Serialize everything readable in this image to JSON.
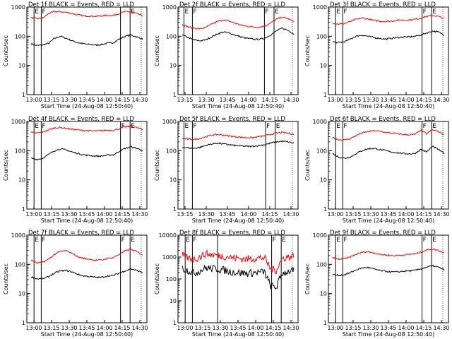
{
  "figure": {
    "background": "#ffffff",
    "series_colors": {
      "events": "#000000",
      "lld": "#ff0000"
    },
    "xlabel": "Start Time (24-Aug-08 12:50:40)",
    "ylabel": "Counts/sec"
  },
  "chart_data": [
    {
      "type": "line",
      "title": "Det 1f BLACK = Events, RED = LLD",
      "scale": "log",
      "ylim": [
        1,
        1000
      ],
      "yticks": [
        "1",
        "10",
        "100",
        "1000"
      ],
      "xticks": [
        "13:00",
        "13:15",
        "13:30",
        "13:45",
        "14:00",
        "14:15",
        "14:30"
      ],
      "markers": [
        {
          "x": 0.06,
          "label": "E"
        },
        {
          "x": 0.12,
          "label": "F"
        },
        {
          "x": 0.78,
          "label": ""
        },
        {
          "x": 0.86,
          "label": "E"
        }
      ],
      "series": [
        {
          "key": "events",
          "values": [
            55,
            48,
            50,
            58,
            85,
            100,
            85,
            70,
            60,
            55,
            52,
            50,
            52,
            58,
            60,
            80,
            100,
            110,
            95,
            80
          ]
        },
        {
          "key": "lld",
          "values": [
            430,
            400,
            420,
            600,
            700,
            690,
            660,
            600,
            540,
            500,
            490,
            480,
            500,
            520,
            520,
            600,
            700,
            690,
            600,
            500
          ]
        }
      ]
    },
    {
      "type": "line",
      "title": "Det 2f BLACK = Events, RED = LLD",
      "scale": "log",
      "ylim": [
        1,
        1000
      ],
      "yticks": [
        "1",
        "10",
        "100",
        "1000"
      ],
      "xticks": [
        "13:15",
        "13:30",
        "13:45",
        "14:00",
        "14:15",
        "14:30"
      ],
      "markers": [
        {
          "x": 0.05,
          "label": "E"
        },
        {
          "x": 0.12,
          "label": "F"
        },
        {
          "x": 0.72,
          "label": "F"
        },
        {
          "x": 0.8,
          "label": "E"
        }
      ],
      "series": [
        {
          "key": "events",
          "values": [
            110,
            90,
            75,
            70,
            75,
            95,
            120,
            140,
            130,
            110,
            95,
            85,
            80,
            78,
            85,
            110,
            150,
            190,
            160,
            120
          ]
        },
        {
          "key": "lld",
          "values": [
            250,
            210,
            190,
            180,
            200,
            260,
            320,
            360,
            330,
            280,
            240,
            220,
            210,
            205,
            220,
            280,
            380,
            450,
            400,
            320
          ]
        }
      ]
    },
    {
      "type": "line",
      "title": "Det 3f BLACK = Events, RED = LLD",
      "scale": "log",
      "ylim": [
        1,
        1000
      ],
      "yticks": [
        "1",
        "10",
        "100",
        "1000"
      ],
      "xticks": [
        "13:00",
        "13:15",
        "13:30",
        "13:45",
        "14:00",
        "14:15",
        "14:30"
      ],
      "markers": [
        {
          "x": 0.06,
          "label": "E"
        },
        {
          "x": 0.12,
          "label": "F"
        },
        {
          "x": 0.78,
          "label": "F"
        },
        {
          "x": 0.86,
          "label": "E"
        }
      ],
      "series": [
        {
          "key": "events",
          "values": [
            65,
            60,
            65,
            80,
            100,
            110,
            100,
            90,
            85,
            80,
            85,
            90,
            95,
            95,
            100,
            110,
            130,
            150,
            140,
            110
          ]
        },
        {
          "key": "lld",
          "values": [
            280,
            260,
            270,
            320,
            380,
            420,
            390,
            350,
            330,
            320,
            330,
            350,
            360,
            360,
            380,
            420,
            480,
            520,
            480,
            400
          ]
        }
      ]
    },
    {
      "type": "line",
      "title": "Det 4f BLACK = Events, RED = LLD",
      "scale": "log",
      "ylim": [
        1,
        1000
      ],
      "yticks": [
        "1",
        "10",
        "100",
        "1000"
      ],
      "xticks": [
        "13:00",
        "13:15",
        "13:30",
        "13:45",
        "14:00",
        "14:15",
        "14:30"
      ],
      "markers": [
        {
          "x": 0.06,
          "label": "E"
        },
        {
          "x": 0.12,
          "label": "F"
        },
        {
          "x": 0.78,
          "label": "F"
        },
        {
          "x": 0.86,
          "label": "E"
        }
      ],
      "series": [
        {
          "key": "events",
          "values": [
            55,
            50,
            55,
            75,
            100,
            115,
            105,
            90,
            80,
            72,
            68,
            65,
            65,
            70,
            72,
            95,
            120,
            135,
            120,
            100
          ]
        },
        {
          "key": "lld",
          "values": [
            420,
            400,
            430,
            520,
            600,
            620,
            580,
            540,
            510,
            490,
            480,
            470,
            480,
            500,
            500,
            560,
            650,
            680,
            620,
            520
          ]
        }
      ]
    },
    {
      "type": "line",
      "title": "Det 5f BLACK = Events, RED = LLD",
      "scale": "log",
      "ylim": [
        1,
        1000
      ],
      "yticks": [
        "1",
        "10",
        "100",
        "1000"
      ],
      "xticks": [
        "13:15",
        "13:30",
        "13:45",
        "14:00",
        "14:15",
        "14:30"
      ],
      "markers": [
        {
          "x": 0.05,
          "label": "E"
        },
        {
          "x": 0.12,
          "label": "F"
        },
        {
          "x": 0.73,
          "label": "F"
        },
        {
          "x": 0.81,
          "label": "E"
        }
      ],
      "series": [
        {
          "key": "events",
          "values": [
            130,
            125,
            120,
            130,
            150,
            170,
            180,
            170,
            160,
            150,
            145,
            140,
            140,
            150,
            160,
            180,
            200,
            210,
            200,
            180
          ]
        },
        {
          "key": "lld",
          "values": [
            260,
            250,
            240,
            260,
            300,
            340,
            360,
            340,
            320,
            300,
            290,
            280,
            280,
            300,
            320,
            360,
            400,
            420,
            400,
            360
          ]
        }
      ]
    },
    {
      "type": "line",
      "title": "Det 6f BLACK = Events, RED = LLD",
      "scale": "log",
      "ylim": [
        1,
        1000
      ],
      "yticks": [
        "1",
        "10",
        "100",
        "1000"
      ],
      "xticks": [
        "13:00",
        "13:15",
        "13:30",
        "13:45",
        "14:00",
        "14:15",
        "14:30"
      ],
      "markers": [
        {
          "x": 0.06,
          "label": "E"
        },
        {
          "x": 0.12,
          "label": "F"
        },
        {
          "x": 0.78,
          "label": "F"
        },
        {
          "x": 0.86,
          "label": "E"
        }
      ],
      "series": [
        {
          "key": "events",
          "values": [
            80,
            60,
            55,
            60,
            80,
            100,
            115,
            120,
            110,
            100,
            90,
            85,
            80,
            78,
            80,
            110,
            90,
            140,
            110,
            80
          ]
        },
        {
          "key": "lld",
          "values": [
            280,
            240,
            230,
            260,
            330,
            400,
            450,
            480,
            460,
            420,
            400,
            380,
            360,
            350,
            360,
            500,
            380,
            520,
            450,
            350
          ]
        }
      ]
    },
    {
      "type": "line",
      "title": "Det 7f BLACK = Events, RED = LLD",
      "scale": "log",
      "ylim": [
        1,
        1000
      ],
      "yticks": [
        "1",
        "10",
        "100",
        "1000"
      ],
      "xticks": [
        "13:00",
        "13:15",
        "13:30",
        "13:45",
        "14:00",
        "14:15",
        "14:30"
      ],
      "markers": [
        {
          "x": 0.06,
          "label": "E"
        },
        {
          "x": 0.12,
          "label": "F"
        },
        {
          "x": 0.78,
          "label": "F"
        },
        {
          "x": 0.86,
          "label": "E"
        }
      ],
      "series": [
        {
          "key": "events",
          "values": [
            38,
            32,
            32,
            38,
            50,
            60,
            62,
            55,
            45,
            40,
            38,
            36,
            36,
            40,
            42,
            50,
            60,
            70,
            62,
            52
          ]
        },
        {
          "key": "lld",
          "values": [
            140,
            110,
            120,
            150,
            220,
            280,
            290,
            240,
            180,
            160,
            150,
            140,
            140,
            160,
            170,
            220,
            290,
            330,
            270,
            210
          ]
        }
      ]
    },
    {
      "type": "line",
      "title": "Det 8f BLACK = Events, RED = LLD",
      "scale": "log",
      "ylim": [
        1,
        10000
      ],
      "yticks": [
        "1",
        "10",
        "100",
        "1000",
        "10000"
      ],
      "xticks": [
        "13:00",
        "13:15",
        "13:30",
        "13:45",
        "14:00",
        "14:15",
        "14:30"
      ],
      "markers": [
        {
          "x": 0.06,
          "label": "E"
        },
        {
          "x": 0.12,
          "label": "F"
        },
        {
          "x": 0.33,
          "label": ""
        },
        {
          "x": 0.78,
          "label": "F"
        },
        {
          "x": 0.86,
          "label": "E"
        }
      ],
      "series": [
        {
          "key": "events",
          "values": [
            300,
            250,
            180,
            240,
            320,
            300,
            280,
            260,
            220,
            200,
            190,
            180,
            190,
            200,
            210,
            50,
            40,
            180,
            220,
            240
          ]
        },
        {
          "key": "lld",
          "values": [
            1200,
            900,
            800,
            1000,
            1400,
            1300,
            1200,
            1100,
            1000,
            900,
            850,
            800,
            850,
            900,
            950,
            300,
            250,
            850,
            1000,
            1100
          ]
        }
      ]
    },
    {
      "type": "line",
      "title": "Det 9f BLACK = Events, RED = LLD",
      "scale": "log",
      "ylim": [
        1,
        1000
      ],
      "yticks": [
        "1",
        "10",
        "100",
        "1000"
      ],
      "xticks": [
        "13:00",
        "13:15",
        "13:30",
        "13:45",
        "14:00",
        "14:15",
        "14:30"
      ],
      "markers": [
        {
          "x": 0.06,
          "label": "E"
        },
        {
          "x": 0.12,
          "label": "F"
        },
        {
          "x": 0.78,
          "label": "F"
        },
        {
          "x": 0.86,
          "label": "E"
        }
      ],
      "series": [
        {
          "key": "events",
          "values": [
            45,
            42,
            44,
            52,
            65,
            75,
            78,
            70,
            62,
            58,
            55,
            55,
            58,
            60,
            62,
            70,
            80,
            90,
            80,
            65
          ]
        },
        {
          "key": "lld",
          "values": [
            170,
            150,
            155,
            180,
            220,
            260,
            270,
            250,
            220,
            210,
            200,
            200,
            210,
            220,
            230,
            260,
            310,
            340,
            300,
            250
          ]
        }
      ]
    }
  ]
}
